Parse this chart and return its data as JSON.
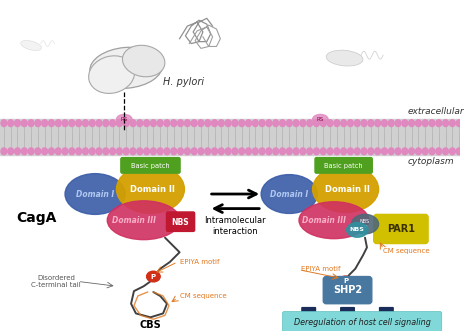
{
  "background_color": "#ffffff",
  "membrane_head_color": "#e088c0",
  "membrane_body_color": "#d8d8d8",
  "membrane_tail_color": "#c0c0c0",
  "extracellular_label": "extracellular",
  "cytoplasm_label": "cytoplasm",
  "domain1_color": "#3a5ca8",
  "domain1_label_color": "#a0b8e8",
  "domain2_color": "#d4a000",
  "domain3_color": "#d03060",
  "domain3_label_color": "#f090b0",
  "basic_patch_color": "#50a020",
  "nbs_color": "#c82040",
  "par1_color": "#d0c000",
  "shp2_color": "#4878a0",
  "cm_domain_color": "#3090a0",
  "arrow_color": "#1a2d5a",
  "epiya_color": "#e07820",
  "phospho_color": "#d03018",
  "caga_label": "CagA",
  "bacteria_body_color": "#e8e8e8",
  "deregulation_bg": "#80d8d8",
  "deregulation_text": "Deregulation of host cell signaling",
  "intramolecular_text": "Intramolecular\ninteraction",
  "domain1_label": "Domain I",
  "domain2_label": "Domain II",
  "domain3_label": "Domain III",
  "basic_patch_label": "Basic patch",
  "nbs_label": "NBS",
  "cbs_label": "CBS",
  "par1_label": "PAR1",
  "shp2_label": "SHP2",
  "cm_sequence_label": "CM sequence",
  "epiya_label": "EPIYA motif",
  "disordered_label": "Disordered\nC-terminal tail",
  "hpylori_label": "H. pylori",
  "rs_label": "RS"
}
